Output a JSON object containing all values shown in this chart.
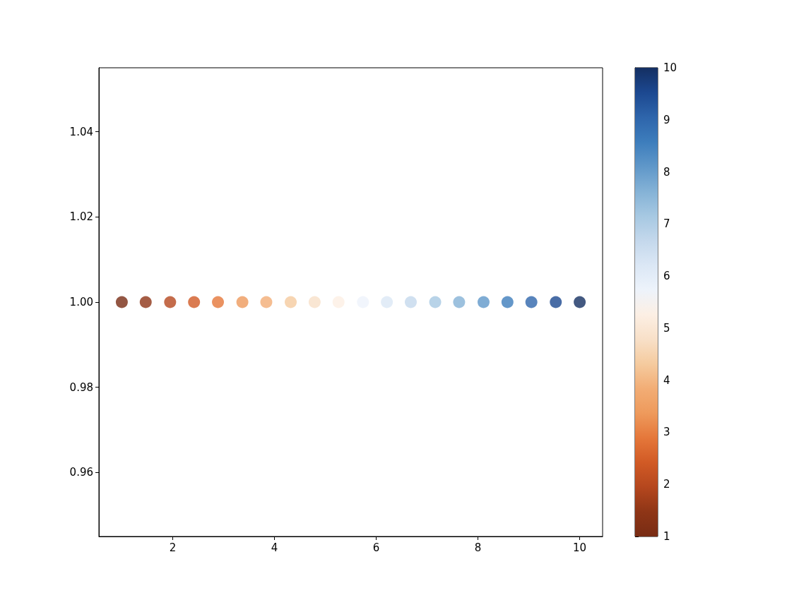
{
  "chart_data": {
    "type": "scatter",
    "marker": "circle",
    "x": [
      1,
      1.47,
      1.95,
      2.42,
      2.89,
      3.37,
      3.84,
      4.32,
      4.79,
      5.26,
      5.74,
      6.21,
      6.68,
      7.16,
      7.63,
      8.11,
      8.58,
      9.05,
      9.53,
      10
    ],
    "values": [
      1,
      1,
      1,
      1,
      1,
      1,
      1,
      1,
      1,
      1,
      1,
      1,
      1,
      1,
      1,
      1,
      1,
      1,
      1,
      1
    ],
    "cvalues": [
      1,
      1.47,
      1.95,
      2.42,
      2.89,
      3.37,
      3.84,
      4.32,
      4.79,
      5.26,
      5.74,
      6.21,
      6.68,
      7.16,
      7.63,
      8.11,
      8.58,
      9.05,
      9.53,
      10
    ],
    "colors": [
      "#782c14",
      "#8e3516",
      "#b5471e",
      "#d15a25",
      "#e5773a",
      "#ee9a5c",
      "#f2ad75",
      "#f5cb9f",
      "#f8e0c8",
      "#fcefe4",
      "#edf3fb",
      "#dbe7f5",
      "#c4d8ec",
      "#a6c8e2",
      "#84b2d6",
      "#5f97c9",
      "#3d7dbc",
      "#2e65ab",
      "#1c4890",
      "#142f62"
    ],
    "xlim": [
      0.55,
      10.45
    ],
    "xticks": [
      2,
      4,
      6,
      8,
      10
    ],
    "ylim": [
      0.945,
      1.055
    ],
    "yticks": [
      0.96,
      0.98,
      {
        "value": 1,
        "label": "1.00"
      },
      1.02,
      1.04
    ],
    "clim": [
      1,
      10
    ],
    "cticks": [
      1,
      2,
      3,
      4,
      5,
      6,
      7,
      8,
      9,
      10
    ]
  }
}
